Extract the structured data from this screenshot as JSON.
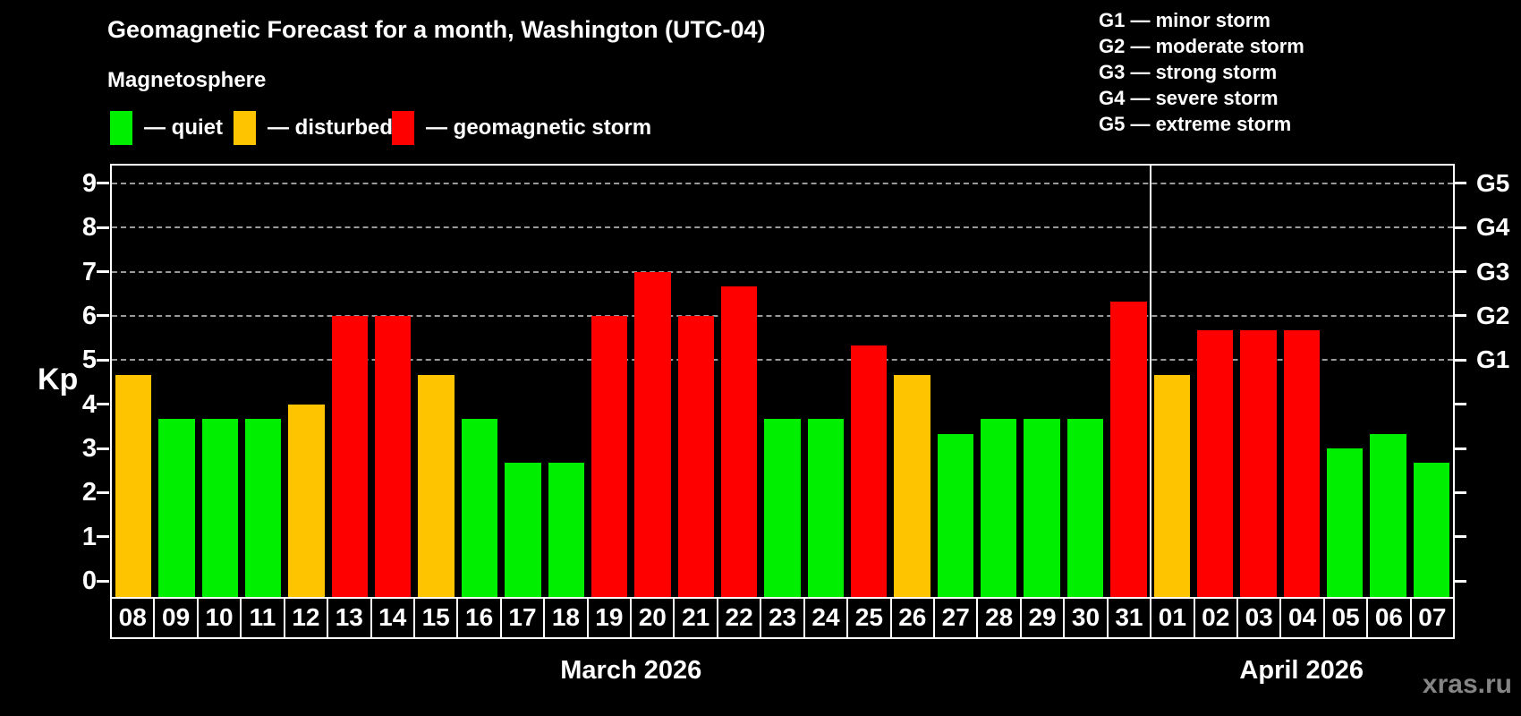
{
  "header": {
    "title": "Geomagnetic Forecast for a month, Washington (UTC-04)",
    "subtitle": "Magnetosphere"
  },
  "legend": {
    "items": [
      {
        "key": "quiet",
        "label": "— quiet",
        "color": "#00ee00"
      },
      {
        "key": "disturbed",
        "label": "— disturbed",
        "color": "#ffc400"
      },
      {
        "key": "storm",
        "label": "— geomagnetic storm",
        "color": "#ff0000"
      }
    ]
  },
  "g_scale_legend": [
    "G1 — minor storm",
    "G2 — moderate storm",
    "G3 — strong storm",
    "G4 — severe storm",
    "G5 — extreme storm"
  ],
  "watermark": "xras.ru",
  "chart_data": {
    "type": "bar",
    "title": "Geomagnetic Forecast for a month, Washington (UTC-04)",
    "ylabel": "Kp",
    "ylim": [
      0,
      9
    ],
    "left_ticks": [
      0,
      1,
      2,
      3,
      4,
      5,
      6,
      7,
      8,
      9
    ],
    "gridlines_at": [
      5,
      6,
      7,
      8,
      9
    ],
    "right_axis": [
      {
        "kp": 5,
        "label": "G1"
      },
      {
        "kp": 6,
        "label": "G2"
      },
      {
        "kp": 7,
        "label": "G3"
      },
      {
        "kp": 8,
        "label": "G4"
      },
      {
        "kp": 9,
        "label": "G5"
      }
    ],
    "categories": [
      "08",
      "09",
      "10",
      "11",
      "12",
      "13",
      "14",
      "15",
      "16",
      "17",
      "18",
      "19",
      "20",
      "21",
      "22",
      "23",
      "24",
      "25",
      "26",
      "27",
      "28",
      "29",
      "30",
      "31",
      "01",
      "02",
      "03",
      "04",
      "05",
      "06",
      "07"
    ],
    "values": [
      4.67,
      3.67,
      3.67,
      3.67,
      4.0,
      6.0,
      6.0,
      4.67,
      3.67,
      2.67,
      2.67,
      6.0,
      7.0,
      6.0,
      6.67,
      3.67,
      3.67,
      5.33,
      4.67,
      3.33,
      3.67,
      3.67,
      3.67,
      6.33,
      4.67,
      5.67,
      5.67,
      5.67,
      3.0,
      3.33,
      2.67
    ],
    "states": [
      "disturbed",
      "quiet",
      "quiet",
      "quiet",
      "disturbed",
      "storm",
      "storm",
      "disturbed",
      "quiet",
      "quiet",
      "quiet",
      "storm",
      "storm",
      "storm",
      "storm",
      "quiet",
      "quiet",
      "storm",
      "disturbed",
      "quiet",
      "quiet",
      "quiet",
      "quiet",
      "storm",
      "disturbed",
      "storm",
      "storm",
      "storm",
      "quiet",
      "quiet",
      "quiet"
    ],
    "colors": {
      "quiet": "#00ee00",
      "disturbed": "#ffc400",
      "storm": "#ff0000"
    },
    "sections": [
      {
        "label": "March 2026",
        "from": 0,
        "to": 23
      },
      {
        "label": "April 2026",
        "from": 24,
        "to": 30
      }
    ],
    "grid": "dashed horizontal at storm levels only",
    "legend_position": "top-left (state colors), top-right (G scale)"
  }
}
